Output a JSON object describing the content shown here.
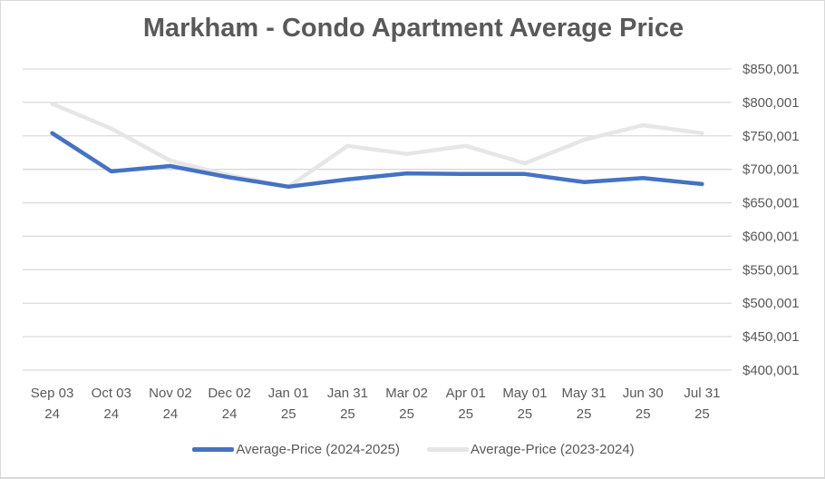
{
  "chart_data": {
    "type": "line",
    "title": "Markham - Condo Apartment Average Price",
    "xlabel": "",
    "ylabel": "",
    "categories": [
      [
        "Sep 03",
        "24"
      ],
      [
        "Oct 03",
        "24"
      ],
      [
        "Nov 02",
        "24"
      ],
      [
        "Dec 02",
        "24"
      ],
      [
        "Jan 01",
        "25"
      ],
      [
        "Jan 31",
        "25"
      ],
      [
        "Mar 02",
        "25"
      ],
      [
        "Apr 01",
        "25"
      ],
      [
        "May 01",
        "25"
      ],
      [
        "May 31",
        "25"
      ],
      [
        "Jun 30",
        "25"
      ],
      [
        "Jul 31",
        "25"
      ]
    ],
    "y_ticks": [
      "$400,001",
      "$450,001",
      "$500,001",
      "$550,001",
      "$600,001",
      "$650,001",
      "$700,001",
      "$750,001",
      "$800,001",
      "$850,001"
    ],
    "ylim": [
      400001,
      850001
    ],
    "y_axis_side": "right",
    "grid": true,
    "legend_position": "bottom",
    "series": [
      {
        "name": "Average-Price (2024-2025)",
        "color": "#4472C4",
        "values": [
          754000,
          697000,
          705000,
          688000,
          674000,
          685000,
          694000,
          693000,
          693000,
          681000,
          687000,
          678000
        ]
      },
      {
        "name": "Average-Price (2023-2024)",
        "color": "#E7E6E6",
        "values": [
          798000,
          761000,
          713000,
          691000,
          674000,
          735000,
          723000,
          735000,
          709000,
          744000,
          766000,
          754000
        ]
      }
    ]
  }
}
